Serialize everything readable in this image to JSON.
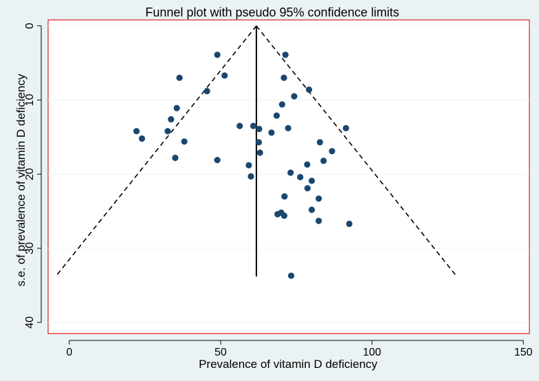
{
  "chart_data": {
    "type": "scatter",
    "title": "Funnel plot with pseudo 95% confidence limits",
    "xlabel": "Prevalence of vitamin D deficiency",
    "ylabel": "s.e. of prevalence of vitamin D deficiency",
    "xlim": [
      -7,
      152
    ],
    "ylim": [
      -0.8,
      41.5
    ],
    "y_reversed": true,
    "xticks": [
      0,
      50,
      100,
      150
    ],
    "yticks": [
      0,
      10,
      20,
      30,
      40
    ],
    "grid": true,
    "pooled_estimate": 61.8,
    "pooled_line": {
      "x": 61.8,
      "y_start": 0,
      "y_end": 33.8
    },
    "confidence_limits": [
      {
        "name": "lower 95% limit",
        "points": [
          [
            61.8,
            0
          ],
          [
            -4.5,
            33.8
          ]
        ]
      },
      {
        "name": "upper 95% limit",
        "points": [
          [
            61.8,
            0
          ],
          [
            128.0,
            33.8
          ]
        ]
      }
    ],
    "series": [
      {
        "name": "studies",
        "points": [
          [
            48.9,
            3.9
          ],
          [
            71.4,
            3.9
          ],
          [
            36.4,
            7.0
          ],
          [
            51.3,
            6.7
          ],
          [
            70.9,
            7.0
          ],
          [
            79.2,
            8.6
          ],
          [
            45.5,
            8.8
          ],
          [
            74.3,
            9.5
          ],
          [
            70.3,
            10.6
          ],
          [
            35.5,
            11.1
          ],
          [
            68.5,
            12.1
          ],
          [
            33.6,
            12.6
          ],
          [
            91.4,
            13.8
          ],
          [
            22.2,
            14.2
          ],
          [
            32.5,
            14.2
          ],
          [
            56.3,
            13.5
          ],
          [
            60.8,
            13.5
          ],
          [
            62.7,
            13.9
          ],
          [
            72.3,
            13.8
          ],
          [
            66.8,
            14.4
          ],
          [
            24.0,
            15.2
          ],
          [
            38.0,
            15.6
          ],
          [
            62.6,
            15.7
          ],
          [
            82.8,
            15.7
          ],
          [
            86.8,
            16.9
          ],
          [
            63.0,
            17.1
          ],
          [
            35.0,
            17.8
          ],
          [
            48.9,
            18.1
          ],
          [
            84.0,
            18.2
          ],
          [
            59.3,
            18.8
          ],
          [
            78.6,
            18.7
          ],
          [
            73.1,
            19.8
          ],
          [
            60.0,
            20.3
          ],
          [
            76.3,
            20.4
          ],
          [
            80.1,
            20.9
          ],
          [
            78.7,
            21.9
          ],
          [
            71.1,
            23.0
          ],
          [
            82.4,
            23.3
          ],
          [
            80.1,
            24.8
          ],
          [
            70.0,
            25.2
          ],
          [
            68.8,
            25.4
          ],
          [
            71.0,
            25.6
          ],
          [
            82.4,
            26.3
          ],
          [
            92.5,
            26.7
          ],
          [
            73.3,
            33.7
          ]
        ]
      }
    ]
  }
}
